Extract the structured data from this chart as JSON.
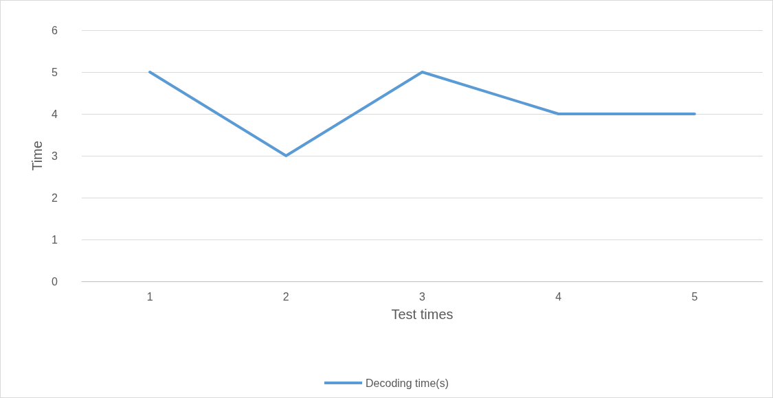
{
  "chart_data": {
    "type": "line",
    "xlabel": "Test times",
    "ylabel": "Time",
    "categories": [
      "1",
      "2",
      "3",
      "4",
      "5"
    ],
    "series": [
      {
        "name": "Decoding time(s)",
        "color": "#5b9bd5",
        "values": [
          5,
          3,
          5,
          4,
          4
        ]
      }
    ],
    "ylim": [
      0,
      6
    ],
    "yticks": [
      0,
      1,
      2,
      3,
      4,
      5,
      6
    ],
    "grid": "y",
    "legend": "bottom",
    "marker": "none",
    "line_style": "solid"
  }
}
